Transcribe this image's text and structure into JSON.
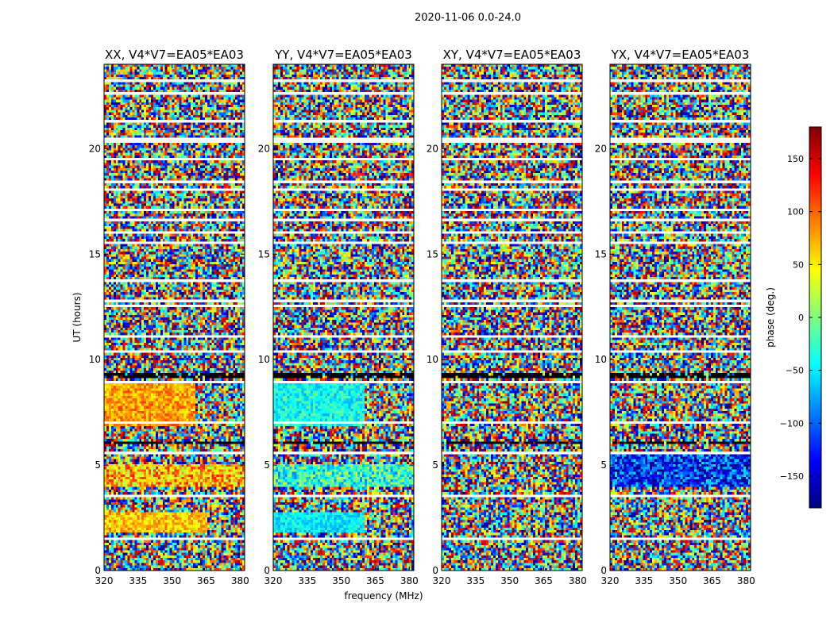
{
  "chart_data": {
    "type": "heatmap",
    "title": "2020-11-06 0.0-24.0",
    "xlabel": "frequency (MHz)",
    "ylabel": "UT (hours)",
    "colorbar_label": "phase (deg.)",
    "xlim": [
      320,
      382
    ],
    "ylim": [
      0,
      24
    ],
    "clim": [
      -180,
      180
    ],
    "x_ticks": [
      320,
      335,
      350,
      365,
      380
    ],
    "y_ticks": [
      0,
      5,
      10,
      15,
      20
    ],
    "colorbar_ticks": [
      150,
      100,
      50,
      0,
      -50,
      -100,
      -150
    ],
    "colorbar_tick_labels": [
      "150",
      "100",
      "50",
      "0",
      "−50",
      "−100",
      "−150"
    ],
    "colormap": [
      "#00007f",
      "#0000ff",
      "#007fff",
      "#00ffff",
      "#7fff7f",
      "#ffff00",
      "#ff7f00",
      "#ff0000",
      "#7f0000"
    ],
    "panels": [
      {
        "title": "XX, V4*V7=EA05*EA03",
        "polarization": "XX",
        "coherent_regions": [
          {
            "t_start": 6.8,
            "t_end": 9.0,
            "f_start": 320,
            "f_end": 360,
            "phase_deg": 80,
            "spread_deg": 35
          },
          {
            "t_start": 1.8,
            "t_end": 2.8,
            "f_start": 320,
            "f_end": 365,
            "phase_deg": 65,
            "spread_deg": 35
          },
          {
            "t_start": 4.0,
            "t_end": 5.1,
            "f_start": 320,
            "f_end": 382,
            "phase_deg": 70,
            "spread_deg": 60
          }
        ]
      },
      {
        "title": "YY, V4*V7=EA05*EA03",
        "polarization": "YY",
        "coherent_regions": [
          {
            "t_start": 6.8,
            "t_end": 9.0,
            "f_start": 320,
            "f_end": 360,
            "phase_deg": -40,
            "spread_deg": 35
          },
          {
            "t_start": 1.8,
            "t_end": 2.8,
            "f_start": 320,
            "f_end": 360,
            "phase_deg": -50,
            "spread_deg": 30
          },
          {
            "t_start": 4.0,
            "t_end": 5.1,
            "f_start": 320,
            "f_end": 382,
            "phase_deg": -30,
            "spread_deg": 60
          }
        ]
      },
      {
        "title": "XY, V4*V7=EA05*EA03",
        "polarization": "XY",
        "coherent_regions": []
      },
      {
        "title": "YX, V4*V7=EA05*EA03",
        "polarization": "YX",
        "coherent_regions": [
          {
            "t_start": 4.0,
            "t_end": 5.5,
            "f_start": 320,
            "f_end": 382,
            "phase_deg": -120,
            "spread_deg": 70
          }
        ]
      }
    ],
    "flagged_time_ranges_hours": [
      [
        0.3,
        0.35
      ],
      [
        0.55,
        0.6
      ],
      [
        1.2,
        1.25
      ],
      [
        1.45,
        1.55
      ],
      [
        1.65,
        1.7
      ],
      [
        2.95,
        3.0
      ],
      [
        3.5,
        3.55
      ],
      [
        4.55,
        4.6
      ],
      [
        5.15,
        5.2
      ],
      [
        5.5,
        5.6
      ],
      [
        5.95,
        6.05
      ],
      [
        6.35,
        6.4
      ],
      [
        7.0,
        7.05
      ],
      [
        8.0,
        8.05
      ],
      [
        8.85,
        8.95
      ],
      [
        9.45,
        9.5
      ],
      [
        9.7,
        9.75
      ],
      [
        10.35,
        10.4
      ],
      [
        10.75,
        10.8
      ],
      [
        11.1,
        11.15
      ],
      [
        11.5,
        11.55
      ],
      [
        12.2,
        12.25
      ],
      [
        12.45,
        12.55
      ],
      [
        12.75,
        12.8
      ],
      [
        13.2,
        13.25
      ],
      [
        13.7,
        13.75
      ],
      [
        14.0,
        14.05
      ],
      [
        14.35,
        14.4
      ],
      [
        15.0,
        15.05
      ],
      [
        15.5,
        15.55
      ],
      [
        16.0,
        16.05
      ],
      [
        16.6,
        16.65
      ],
      [
        17.1,
        17.15
      ],
      [
        17.5,
        17.55
      ],
      [
        18.05,
        18.1
      ],
      [
        18.4,
        18.45
      ],
      [
        18.95,
        19.0
      ],
      [
        19.5,
        19.55
      ],
      [
        20.3,
        20.5
      ],
      [
        21.3,
        21.35
      ],
      [
        21.8,
        21.85
      ],
      [
        22.3,
        22.35
      ],
      [
        22.6,
        22.65
      ],
      [
        23.2,
        23.25
      ]
    ],
    "dark_time_ranges_hours": [
      [
        9.1,
        9.3
      ],
      [
        6.0,
        6.1
      ]
    ]
  }
}
